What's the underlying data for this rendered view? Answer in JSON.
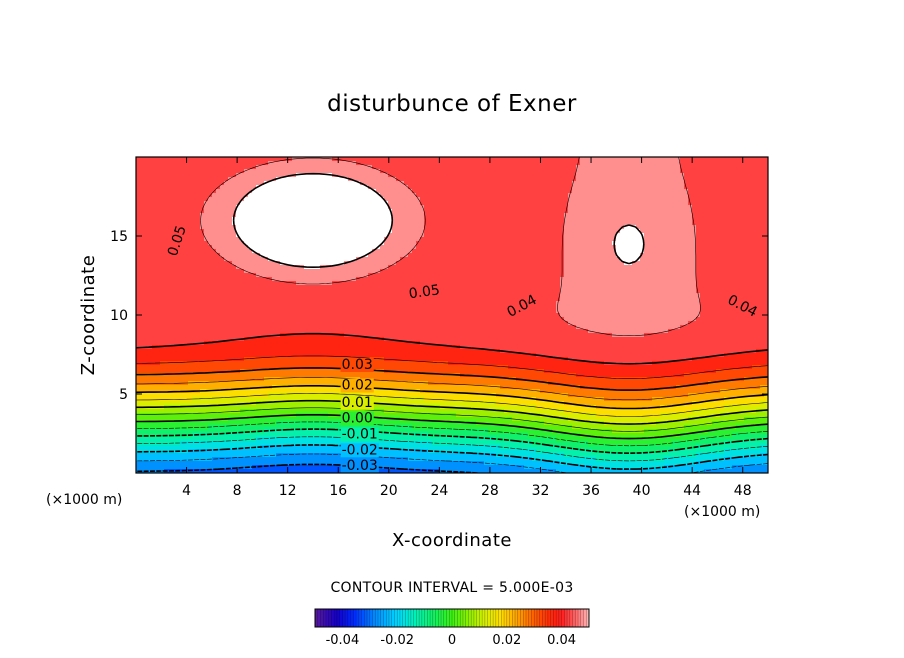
{
  "chart_data": {
    "type": "contour",
    "title": "disturbunce of Exner",
    "xlabel": "X-coordinate",
    "ylabel": "Z-coordinate",
    "x_unit_label": "(×1000 m)",
    "y_unit_label": "(×1000 m)",
    "xlim": [
      0,
      50
    ],
    "ylim": [
      0,
      20
    ],
    "x_ticks": [
      4,
      8,
      12,
      16,
      20,
      24,
      28,
      32,
      36,
      40,
      44,
      48
    ],
    "y_ticks": [
      5,
      10,
      15
    ],
    "contour_interval_text": "CONTOUR INTERVAL = 5.000E-03",
    "contour_interval": 0.005,
    "value_range": [
      -0.05,
      0.05
    ],
    "negative_contours_dashed": true,
    "contour_labels": [
      {
        "text": "0.05",
        "x": 3.2,
        "y": 14.7,
        "rotate": -72
      },
      {
        "text": "0.05",
        "x": 22.8,
        "y": 11.5,
        "rotate": -8
      },
      {
        "text": "0.04",
        "x": 30.5,
        "y": 10.6,
        "rotate": -28
      },
      {
        "text": "0.04",
        "x": 48.0,
        "y": 10.6,
        "rotate": 28
      },
      {
        "text": "0.03",
        "x": 17.5,
        "y": 6.9,
        "rotate": 0
      },
      {
        "text": "0.02",
        "x": 17.5,
        "y": 5.6,
        "rotate": 0
      },
      {
        "text": "0.01",
        "x": 17.5,
        "y": 4.5,
        "rotate": 0
      },
      {
        "text": "0.00",
        "x": 17.5,
        "y": 3.5,
        "rotate": 0
      },
      {
        "text": "-0.01",
        "x": 17.7,
        "y": 2.5,
        "rotate": 0
      },
      {
        "text": "-0.02",
        "x": 17.7,
        "y": 1.5,
        "rotate": 0
      },
      {
        "text": "-0.03",
        "x": 17.7,
        "y": 0.5,
        "rotate": 0
      }
    ],
    "colorbar": {
      "min": -0.05,
      "max": 0.05,
      "ticks": [
        "-0.04",
        "-0.02",
        "0",
        "0.02",
        "0.04"
      ],
      "tick_values": [
        -0.04,
        -0.02,
        0,
        0.02,
        0.04
      ]
    },
    "colors": {
      "white_region": "#ffffff",
      "max_red": "#ff2000",
      "low_blue": "#0000ff",
      "min_violet": "#5a1a9a"
    }
  }
}
